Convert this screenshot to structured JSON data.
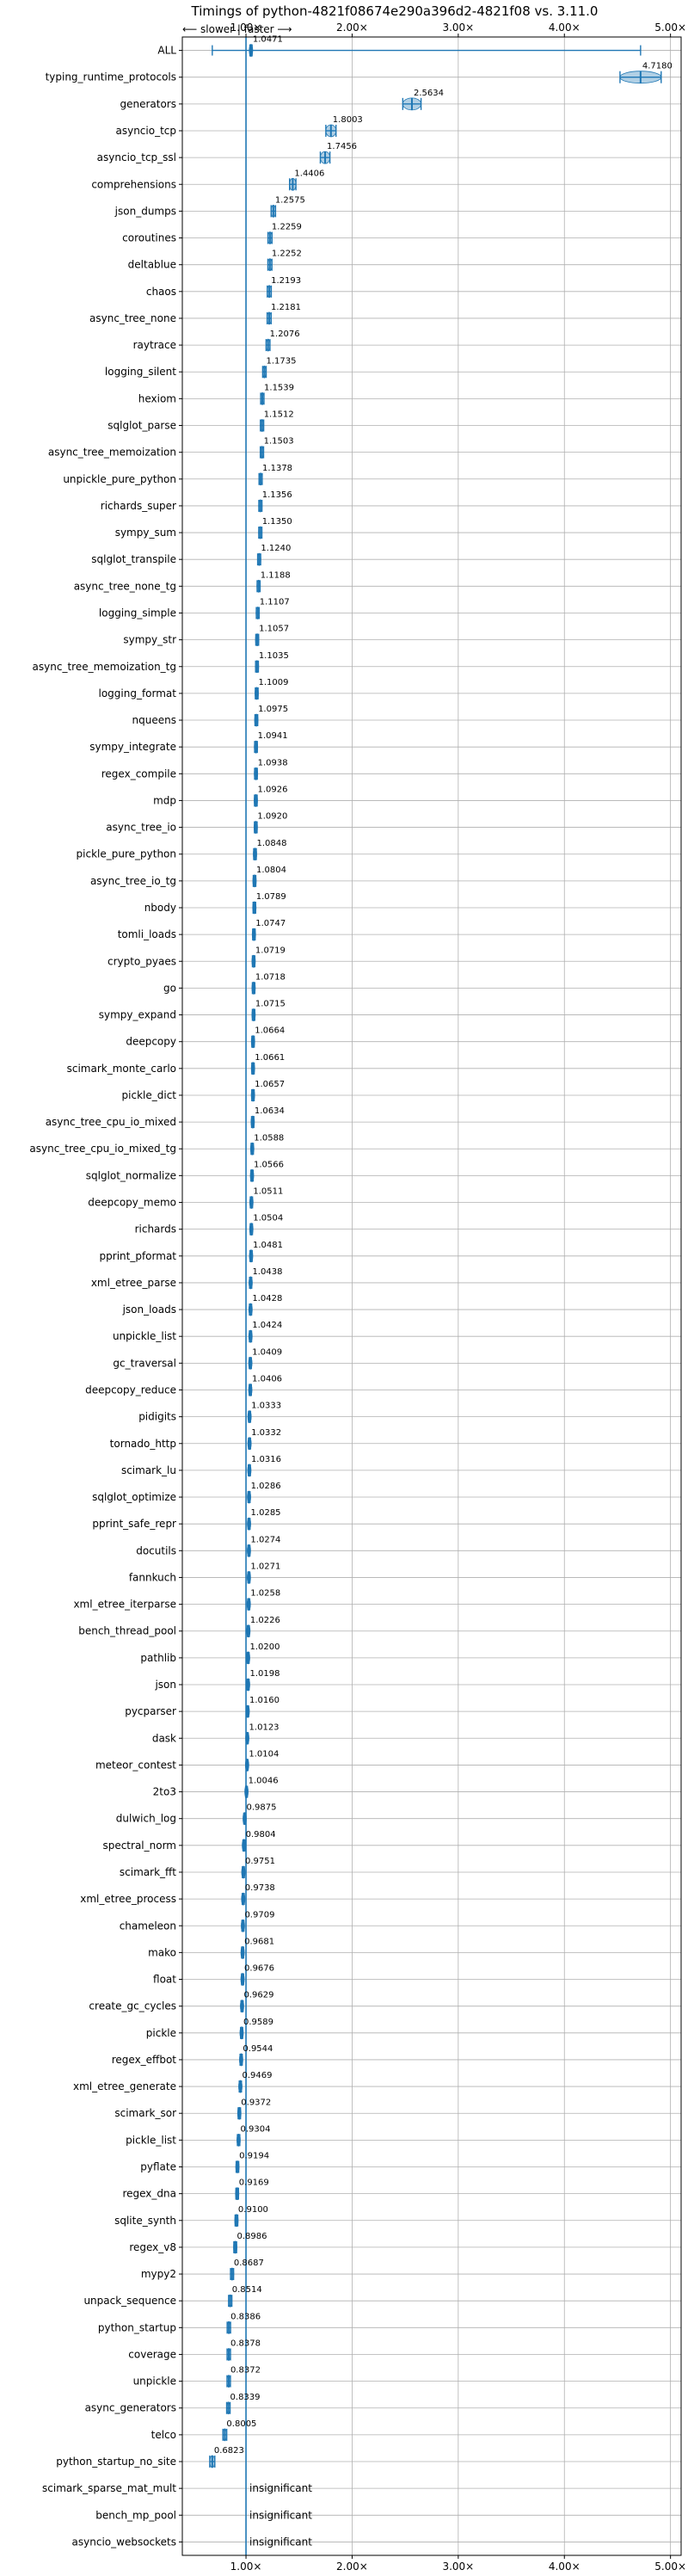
{
  "chart_data": {
    "type": "violin",
    "title": "Timings of python-4821f08674e290a396d2-4821f08 vs. 3.11.0",
    "direction_hint": "⟵ slower | faster ⟶",
    "xlim": [
      0.4,
      5.1
    ],
    "xticks": [
      1.0,
      2.0,
      3.0,
      4.0,
      5.0
    ],
    "xtick_labels": [
      "1.00×",
      "2.00×",
      "3.00×",
      "4.00×",
      "5.00×"
    ],
    "reference_line": 1.0,
    "grid": true,
    "insignificant_label": "insignificant",
    "benchmarks": [
      {
        "name": "ALL",
        "value": 1.0471,
        "label": "1.0471"
      },
      {
        "name": "typing_runtime_protocols",
        "value": 4.718,
        "label": "4.7180"
      },
      {
        "name": "generators",
        "value": 2.5634,
        "label": "2.5634"
      },
      {
        "name": "asyncio_tcp",
        "value": 1.8003,
        "label": "1.8003"
      },
      {
        "name": "asyncio_tcp_ssl",
        "value": 1.7456,
        "label": "1.7456"
      },
      {
        "name": "comprehensions",
        "value": 1.4406,
        "label": "1.4406"
      },
      {
        "name": "json_dumps",
        "value": 1.2575,
        "label": "1.2575"
      },
      {
        "name": "coroutines",
        "value": 1.2259,
        "label": "1.2259"
      },
      {
        "name": "deltablue",
        "value": 1.2252,
        "label": "1.2252"
      },
      {
        "name": "chaos",
        "value": 1.2193,
        "label": "1.2193"
      },
      {
        "name": "async_tree_none",
        "value": 1.2181,
        "label": "1.2181"
      },
      {
        "name": "raytrace",
        "value": 1.2076,
        "label": "1.2076"
      },
      {
        "name": "logging_silent",
        "value": 1.1735,
        "label": "1.1735"
      },
      {
        "name": "hexiom",
        "value": 1.1539,
        "label": "1.1539"
      },
      {
        "name": "sqlglot_parse",
        "value": 1.1512,
        "label": "1.1512"
      },
      {
        "name": "async_tree_memoization",
        "value": 1.1503,
        "label": "1.1503"
      },
      {
        "name": "unpickle_pure_python",
        "value": 1.1378,
        "label": "1.1378"
      },
      {
        "name": "richards_super",
        "value": 1.1356,
        "label": "1.1356"
      },
      {
        "name": "sympy_sum",
        "value": 1.135,
        "label": "1.1350"
      },
      {
        "name": "sqlglot_transpile",
        "value": 1.124,
        "label": "1.1240"
      },
      {
        "name": "async_tree_none_tg",
        "value": 1.1188,
        "label": "1.1188"
      },
      {
        "name": "logging_simple",
        "value": 1.1107,
        "label": "1.1107"
      },
      {
        "name": "sympy_str",
        "value": 1.1057,
        "label": "1.1057"
      },
      {
        "name": "async_tree_memoization_tg",
        "value": 1.1035,
        "label": "1.1035"
      },
      {
        "name": "logging_format",
        "value": 1.1009,
        "label": "1.1009"
      },
      {
        "name": "nqueens",
        "value": 1.0975,
        "label": "1.0975"
      },
      {
        "name": "sympy_integrate",
        "value": 1.0941,
        "label": "1.0941"
      },
      {
        "name": "regex_compile",
        "value": 1.0938,
        "label": "1.0938"
      },
      {
        "name": "mdp",
        "value": 1.0926,
        "label": "1.0926"
      },
      {
        "name": "async_tree_io",
        "value": 1.092,
        "label": "1.0920"
      },
      {
        "name": "pickle_pure_python",
        "value": 1.0848,
        "label": "1.0848"
      },
      {
        "name": "async_tree_io_tg",
        "value": 1.0804,
        "label": "1.0804"
      },
      {
        "name": "nbody",
        "value": 1.0789,
        "label": "1.0789"
      },
      {
        "name": "tomli_loads",
        "value": 1.0747,
        "label": "1.0747"
      },
      {
        "name": "crypto_pyaes",
        "value": 1.0719,
        "label": "1.0719"
      },
      {
        "name": "go",
        "value": 1.0718,
        "label": "1.0718"
      },
      {
        "name": "sympy_expand",
        "value": 1.0715,
        "label": "1.0715"
      },
      {
        "name": "deepcopy",
        "value": 1.0664,
        "label": "1.0664"
      },
      {
        "name": "scimark_monte_carlo",
        "value": 1.0661,
        "label": "1.0661"
      },
      {
        "name": "pickle_dict",
        "value": 1.0657,
        "label": "1.0657"
      },
      {
        "name": "async_tree_cpu_io_mixed",
        "value": 1.0634,
        "label": "1.0634"
      },
      {
        "name": "async_tree_cpu_io_mixed_tg",
        "value": 1.0588,
        "label": "1.0588"
      },
      {
        "name": "sqlglot_normalize",
        "value": 1.0566,
        "label": "1.0566"
      },
      {
        "name": "deepcopy_memo",
        "value": 1.0511,
        "label": "1.0511"
      },
      {
        "name": "richards",
        "value": 1.0504,
        "label": "1.0504"
      },
      {
        "name": "pprint_pformat",
        "value": 1.0481,
        "label": "1.0481"
      },
      {
        "name": "xml_etree_parse",
        "value": 1.0438,
        "label": "1.0438"
      },
      {
        "name": "json_loads",
        "value": 1.0428,
        "label": "1.0428"
      },
      {
        "name": "unpickle_list",
        "value": 1.0424,
        "label": "1.0424"
      },
      {
        "name": "gc_traversal",
        "value": 1.0409,
        "label": "1.0409"
      },
      {
        "name": "deepcopy_reduce",
        "value": 1.0406,
        "label": "1.0406"
      },
      {
        "name": "pidigits",
        "value": 1.0333,
        "label": "1.0333"
      },
      {
        "name": "tornado_http",
        "value": 1.0332,
        "label": "1.0332"
      },
      {
        "name": "scimark_lu",
        "value": 1.0316,
        "label": "1.0316"
      },
      {
        "name": "sqlglot_optimize",
        "value": 1.0286,
        "label": "1.0286"
      },
      {
        "name": "pprint_safe_repr",
        "value": 1.0285,
        "label": "1.0285"
      },
      {
        "name": "docutils",
        "value": 1.0274,
        "label": "1.0274"
      },
      {
        "name": "fannkuch",
        "value": 1.0271,
        "label": "1.0271"
      },
      {
        "name": "xml_etree_iterparse",
        "value": 1.0258,
        "label": "1.0258"
      },
      {
        "name": "bench_thread_pool",
        "value": 1.0226,
        "label": "1.0226"
      },
      {
        "name": "pathlib",
        "value": 1.02,
        "label": "1.0200"
      },
      {
        "name": "json",
        "value": 1.0198,
        "label": "1.0198"
      },
      {
        "name": "pycparser",
        "value": 1.016,
        "label": "1.0160"
      },
      {
        "name": "dask",
        "value": 1.0123,
        "label": "1.0123"
      },
      {
        "name": "meteor_contest",
        "value": 1.0104,
        "label": "1.0104"
      },
      {
        "name": "2to3",
        "value": 1.0046,
        "label": "1.0046"
      },
      {
        "name": "dulwich_log",
        "value": 0.9875,
        "label": "0.9875"
      },
      {
        "name": "spectral_norm",
        "value": 0.9804,
        "label": "0.9804"
      },
      {
        "name": "scimark_fft",
        "value": 0.9751,
        "label": "0.9751"
      },
      {
        "name": "xml_etree_process",
        "value": 0.9738,
        "label": "0.9738"
      },
      {
        "name": "chameleon",
        "value": 0.9709,
        "label": "0.9709"
      },
      {
        "name": "mako",
        "value": 0.9681,
        "label": "0.9681"
      },
      {
        "name": "float",
        "value": 0.9676,
        "label": "0.9676"
      },
      {
        "name": "create_gc_cycles",
        "value": 0.9629,
        "label": "0.9629"
      },
      {
        "name": "pickle",
        "value": 0.9589,
        "label": "0.9589"
      },
      {
        "name": "regex_effbot",
        "value": 0.9544,
        "label": "0.9544"
      },
      {
        "name": "xml_etree_generate",
        "value": 0.9469,
        "label": "0.9469"
      },
      {
        "name": "scimark_sor",
        "value": 0.9372,
        "label": "0.9372"
      },
      {
        "name": "pickle_list",
        "value": 0.9304,
        "label": "0.9304"
      },
      {
        "name": "pyflate",
        "value": 0.9194,
        "label": "0.9194"
      },
      {
        "name": "regex_dna",
        "value": 0.9169,
        "label": "0.9169"
      },
      {
        "name": "sqlite_synth",
        "value": 0.91,
        "label": "0.9100"
      },
      {
        "name": "regex_v8",
        "value": 0.8986,
        "label": "0.8986"
      },
      {
        "name": "mypy2",
        "value": 0.8687,
        "label": "0.8687"
      },
      {
        "name": "unpack_sequence",
        "value": 0.8514,
        "label": "0.8514"
      },
      {
        "name": "python_startup",
        "value": 0.8386,
        "label": "0.8386"
      },
      {
        "name": "coverage",
        "value": 0.8378,
        "label": "0.8378"
      },
      {
        "name": "unpickle",
        "value": 0.8372,
        "label": "0.8372"
      },
      {
        "name": "async_generators",
        "value": 0.8339,
        "label": "0.8339"
      },
      {
        "name": "telco",
        "value": 0.8005,
        "label": "0.8005"
      },
      {
        "name": "python_startup_no_site",
        "value": 0.6823,
        "label": "0.6823"
      },
      {
        "name": "scimark_sparse_mat_mult",
        "value": null,
        "label": "insignificant"
      },
      {
        "name": "bench_mp_pool",
        "value": null,
        "label": "insignificant"
      },
      {
        "name": "asyncio_websockets",
        "value": null,
        "label": "insignificant"
      }
    ]
  }
}
